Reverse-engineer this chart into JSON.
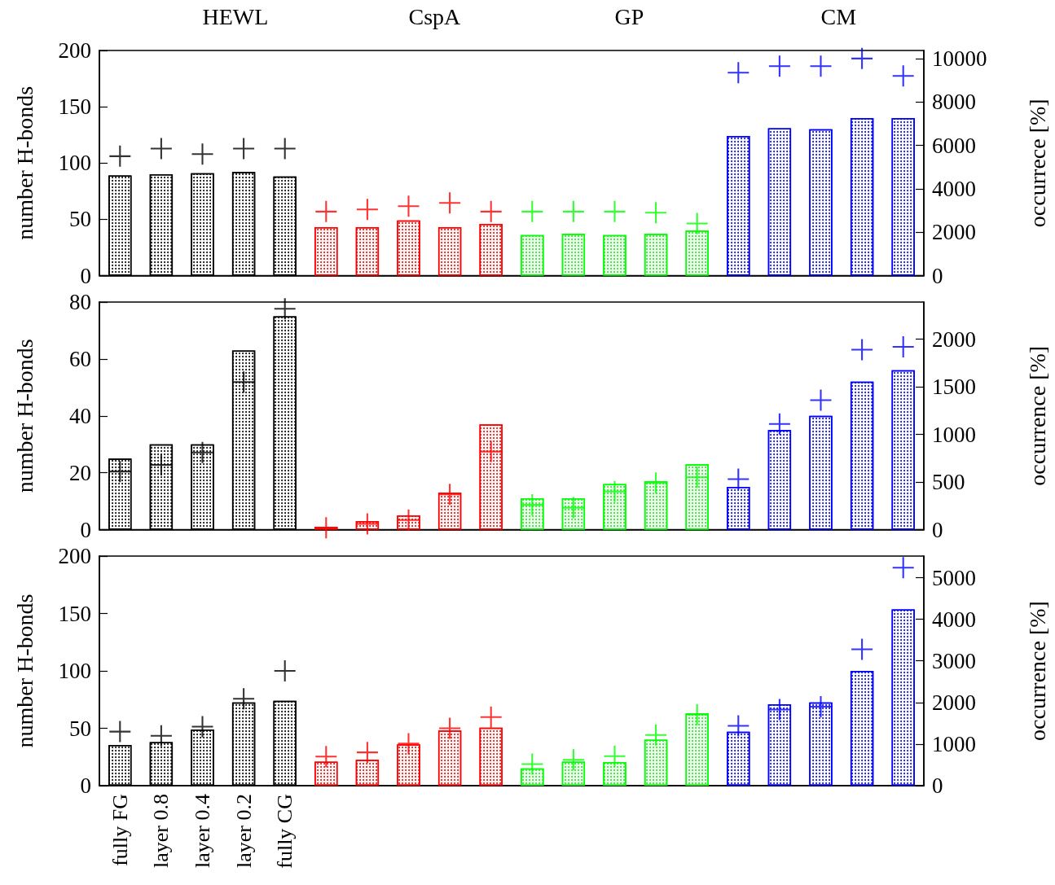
{
  "chart_data": [
    {
      "type": "bar",
      "ylabel": "number H-bonds",
      "y2label": "occurrece [%]",
      "annotations": [
        "HEWL",
        "CspA",
        "GP",
        "CM"
      ],
      "categories": [
        null,
        null,
        null,
        null,
        null,
        null,
        null,
        null,
        null,
        null,
        null,
        null,
        null,
        null,
        null,
        null,
        null,
        null,
        null,
        null
      ],
      "series": [
        {
          "colors": [
            "#000000",
            "#000000",
            "#000000",
            "#000000",
            "#000000",
            "#ff0000",
            "#ff0000",
            "#ff0000",
            "#ff0000",
            "#ff0000",
            "#00ff00",
            "#00ff00",
            "#00ff00",
            "#00ff00",
            "#00ff00",
            "#0000ff",
            "#0000ff",
            "#0000ff",
            "#0000ff",
            "#0000ff"
          ],
          "values": [
            89,
            90,
            91,
            92,
            88,
            43,
            43,
            49,
            43,
            46,
            36,
            37,
            36,
            37,
            40,
            124,
            131,
            130,
            140,
            140
          ]
        },
        {
          "type": "scatter",
          "axis": "y2",
          "marker": "cross",
          "colors": [
            "#000000",
            "#000000",
            "#000000",
            "#000000",
            "#000000",
            "#ff0000",
            "#ff0000",
            "#ff0000",
            "#ff0000",
            "#ff0000",
            "#00ff00",
            "#00ff00",
            "#00ff00",
            "#00ff00",
            "#00ff00",
            "#0000ff",
            "#0000ff",
            "#0000ff",
            "#0000ff",
            "#0000ff"
          ],
          "values": [
            5500,
            5850,
            5600,
            5850,
            5850,
            2950,
            3050,
            3200,
            3350,
            2950,
            2950,
            2950,
            2950,
            2900,
            2400,
            9350,
            9650,
            9650,
            10000,
            9200
          ]
        }
      ],
      "ylim": [
        0,
        200
      ],
      "yticks": [
        0,
        50,
        100,
        150,
        200
      ],
      "y2lim": [
        0,
        10370
      ],
      "y2ticks": [
        0,
        2000,
        4000,
        6000,
        8000,
        10000
      ],
      "tick_labels": "y"
    },
    {
      "type": "bar",
      "ylabel": "number H-bonds",
      "y2label": "occurrence [%]",
      "categories": [
        null,
        null,
        null,
        null,
        null,
        null,
        null,
        null,
        null,
        null,
        null,
        null,
        null,
        null,
        null,
        null,
        null,
        null,
        null,
        null
      ],
      "series": [
        {
          "colors": [
            "#000000",
            "#000000",
            "#000000",
            "#000000",
            "#000000",
            "#ff0000",
            "#ff0000",
            "#ff0000",
            "#ff0000",
            "#ff0000",
            "#00ff00",
            "#00ff00",
            "#00ff00",
            "#00ff00",
            "#00ff00",
            "#0000ff",
            "#0000ff",
            "#0000ff",
            "#0000ff",
            "#0000ff"
          ],
          "values": [
            25,
            30,
            30,
            63,
            75,
            1,
            3,
            5,
            13,
            37,
            11,
            11,
            16,
            17,
            23,
            15,
            35,
            40,
            52,
            56
          ]
        },
        {
          "type": "scatter",
          "axis": "y2",
          "marker": "cross",
          "colors": [
            "#000000",
            "#000000",
            "#000000",
            "#000000",
            "#000000",
            "#ff0000",
            "#ff0000",
            "#ff0000",
            "#ff0000",
            "#ff0000",
            "#00ff00",
            "#00ff00",
            "#00ff00",
            "#00ff00",
            "#00ff00",
            "#0000ff",
            "#0000ff",
            "#0000ff",
            "#0000ff",
            "#0000ff"
          ],
          "values": [
            610,
            680,
            810,
            1550,
            2320,
            20,
            60,
            100,
            370,
            820,
            260,
            230,
            400,
            490,
            550,
            530,
            1110,
            1360,
            1890,
            1920
          ]
        }
      ],
      "ylim": [
        0,
        80
      ],
      "yticks": [
        0,
        20,
        40,
        60,
        80
      ],
      "y2lim": [
        0,
        2390
      ],
      "y2ticks": [
        0,
        500,
        1000,
        1500,
        2000
      ],
      "tick_labels": "y"
    },
    {
      "type": "bar",
      "ylabel": "number H-bonds",
      "y2label": "occurrence [%]",
      "categories": [
        "fully FG",
        "layer 0.8",
        "layer 0.4",
        "layer 0.2",
        "fully CG",
        null,
        null,
        null,
        null,
        null,
        null,
        null,
        null,
        null,
        null,
        null,
        null,
        null,
        null,
        null
      ],
      "series": [
        {
          "colors": [
            "#000000",
            "#000000",
            "#000000",
            "#000000",
            "#000000",
            "#ff0000",
            "#ff0000",
            "#ff0000",
            "#ff0000",
            "#ff0000",
            "#00ff00",
            "#00ff00",
            "#00ff00",
            "#00ff00",
            "#00ff00",
            "#0000ff",
            "#0000ff",
            "#0000ff",
            "#0000ff",
            "#0000ff"
          ],
          "values": [
            35.5,
            38,
            49,
            72.5,
            74,
            21,
            22.5,
            36,
            48,
            50.5,
            15,
            21,
            20.5,
            40,
            63,
            47,
            71,
            72.5,
            100,
            153.5
          ]
        },
        {
          "type": "scatter",
          "axis": "y2",
          "marker": "cross",
          "colors": [
            "#000000",
            "#000000",
            "#000000",
            "#000000",
            "#000000",
            "#ff0000",
            "#ff0000",
            "#ff0000",
            "#ff0000",
            "#ff0000",
            "#00ff00",
            "#00ff00",
            "#00ff00",
            "#00ff00",
            "#00ff00",
            "#0000ff",
            "#0000ff",
            "#0000ff",
            "#0000ff",
            "#0000ff"
          ],
          "values": [
            1300,
            1200,
            1420,
            2090,
            2760,
            700,
            800,
            1010,
            1380,
            1650,
            520,
            620,
            710,
            1220,
            1710,
            1440,
            1830,
            1900,
            3280,
            5240
          ]
        }
      ],
      "ylim": [
        0,
        200
      ],
      "yticks": [
        0,
        50,
        100,
        150,
        200
      ],
      "y2lim": [
        0,
        5520
      ],
      "y2ticks": [
        0,
        1000,
        2000,
        3000,
        4000,
        5000
      ]
    }
  ]
}
